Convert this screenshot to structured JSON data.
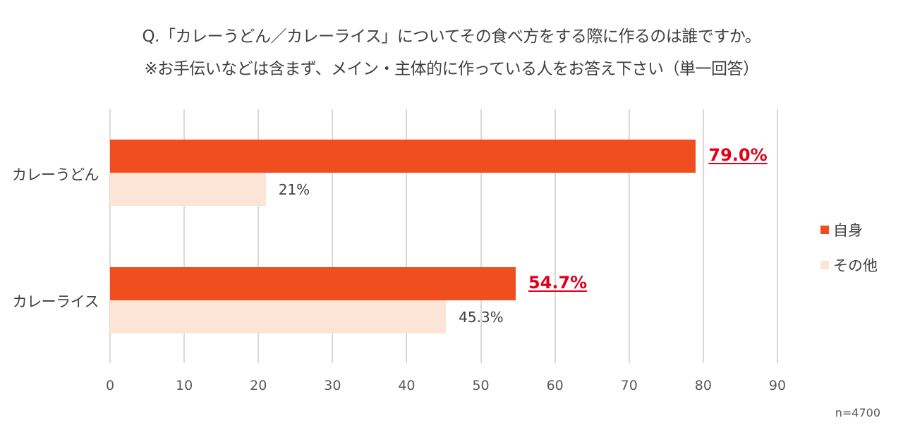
{
  "title": {
    "line1": "Q.「カレーうどん／カレーライス」についてその食べ方をする際に作るのは誰ですか。",
    "line2": "※お手伝いなどは含まず、メイン・主体的に作っている人をお答え下さい（単一回答）"
  },
  "categories": [
    "カレーうどん",
    "カレーライス"
  ],
  "bars": [
    {
      "category": "カレーうどん",
      "self_value": 79.0,
      "self_label": "79.0%",
      "other_value": 21,
      "other_label": "21%"
    },
    {
      "category": "カレーライス",
      "self_value": 54.7,
      "self_label": "54.7%",
      "other_value": 45.3,
      "other_label": "45.3%"
    }
  ],
  "x_ticks": [
    "0",
    "10",
    "20",
    "30",
    "40",
    "50",
    "60",
    "70",
    "80",
    "90"
  ],
  "legend": [
    {
      "label": "自身",
      "color": "#f04e1e"
    },
    {
      "label": "その他",
      "color": "#fce4d6"
    }
  ],
  "sample_size": "n=4700",
  "colors": {
    "self": "#f04e1e",
    "other": "#fce4d6",
    "highlight_label": "#e0001b"
  },
  "chart_data": {
    "type": "bar",
    "orientation": "horizontal",
    "title": "Q.「カレーうどん／カレーライス」についてその食べ方をする際に作るのは誰ですか。※お手伝いなどは含まず、メイン・主体的に作っている人をお答え下さい（単一回答）",
    "categories": [
      "カレーうどん",
      "カレーライス"
    ],
    "series": [
      {
        "name": "自身",
        "values": [
          79.0,
          54.7
        ],
        "color": "#f04e1e"
      },
      {
        "name": "その他",
        "values": [
          21,
          45.3
        ],
        "color": "#fce4d6"
      }
    ],
    "data_labels": {
      "自身": [
        "79.0%",
        "54.7%"
      ],
      "その他": [
        "21%",
        "45.3%"
      ]
    },
    "xlabel": "",
    "ylabel": "",
    "xlim": [
      0,
      90
    ],
    "x_ticks": [
      0,
      10,
      20,
      30,
      40,
      50,
      60,
      70,
      80,
      90
    ],
    "grid": "vertical",
    "legend_position": "right",
    "annotation": "n=4700"
  }
}
